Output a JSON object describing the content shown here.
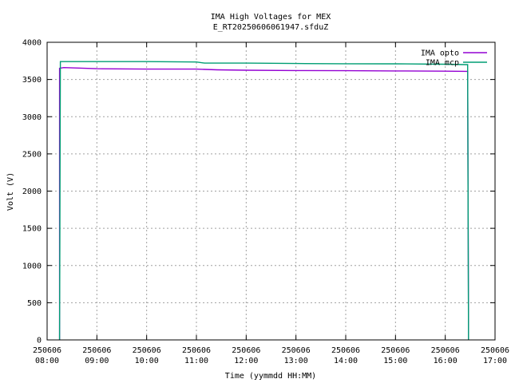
{
  "chart_data": {
    "type": "line",
    "title": "IMA High Voltages for MEX",
    "subtitle": "E_RT20250606061947.sfduZ",
    "xlabel": "Time (yymmdd HH:MM)",
    "ylabel": "Volt (V)",
    "xlim": [
      "250606 08:00",
      "250606 17:00"
    ],
    "ylim": [
      0,
      4000
    ],
    "grid": true,
    "legend_position": "top-right",
    "x_ticks": [
      {
        "date": "250606",
        "time": "08:00"
      },
      {
        "date": "250606",
        "time": "09:00"
      },
      {
        "date": "250606",
        "time": "10:00"
      },
      {
        "date": "250606",
        "time": "11:00"
      },
      {
        "date": "250606",
        "time": "12:00"
      },
      {
        "date": "250606",
        "time": "13:00"
      },
      {
        "date": "250606",
        "time": "14:00"
      },
      {
        "date": "250606",
        "time": "15:00"
      },
      {
        "date": "250606",
        "time": "16:00"
      },
      {
        "date": "250606",
        "time": "17:00"
      }
    ],
    "y_ticks": [
      0,
      500,
      1000,
      1500,
      2000,
      2500,
      3000,
      3500,
      4000
    ],
    "series": [
      {
        "name": "IMA opto",
        "color": "#9400d3",
        "points": [
          [
            "250606 08:15",
            0
          ],
          [
            "250606 08:15",
            200
          ],
          [
            "250606 08:15",
            3650
          ],
          [
            "250606 08:20",
            3660
          ],
          [
            "250606 09:00",
            3645
          ],
          [
            "250606 10:00",
            3640
          ],
          [
            "250606 11:00",
            3640
          ],
          [
            "250606 11:25",
            3630
          ],
          [
            "250606 12:00",
            3625
          ],
          [
            "250606 13:00",
            3620
          ],
          [
            "250606 14:00",
            3618
          ],
          [
            "250606 15:00",
            3615
          ],
          [
            "250606 16:00",
            3612
          ],
          [
            "250606 16:25",
            3610
          ],
          [
            "250606 16:27",
            3610
          ],
          [
            "250606 16:28",
            200
          ],
          [
            "250606 16:28",
            0
          ]
        ]
      },
      {
        "name": "IMA mcp",
        "color": "#009e73",
        "points": [
          [
            "250606 08:15",
            0
          ],
          [
            "250606 08:16",
            3740
          ],
          [
            "250606 09:00",
            3740
          ],
          [
            "250606 10:00",
            3740
          ],
          [
            "250606 11:00",
            3735
          ],
          [
            "250606 11:10",
            3720
          ],
          [
            "250606 12:00",
            3720
          ],
          [
            "250606 13:00",
            3715
          ],
          [
            "250606 14:00",
            3712
          ],
          [
            "250606 15:00",
            3710
          ],
          [
            "250606 16:00",
            3705
          ],
          [
            "250606 16:26",
            3700
          ],
          [
            "250606 16:27",
            3700
          ],
          [
            "250606 16:28",
            0
          ]
        ]
      }
    ]
  }
}
